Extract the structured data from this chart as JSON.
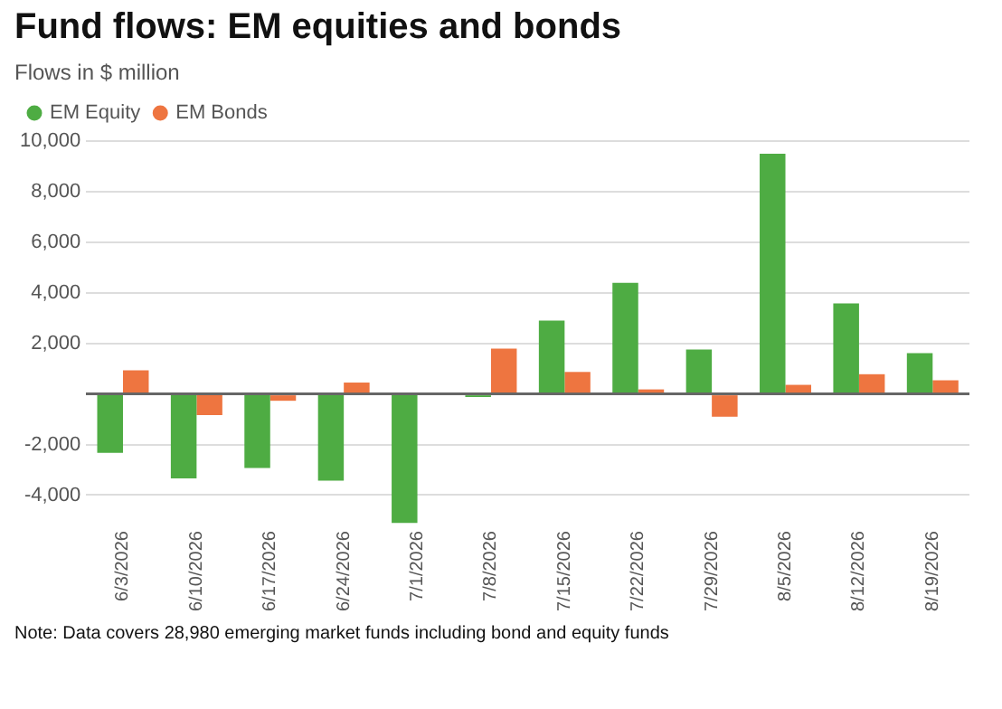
{
  "chart_data": {
    "type": "bar",
    "title": "Fund flows: EM equities and bonds",
    "subtitle": "Flows in $ million",
    "categories": [
      "6/3/2026",
      "6/10/2026",
      "6/17/2026",
      "6/24/2026",
      "7/1/2026",
      "7/8/2026",
      "7/15/2026",
      "7/22/2026",
      "7/29/2026",
      "8/5/2026",
      "8/12/2026",
      "8/19/2026"
    ],
    "series": [
      {
        "name": "EM Equity",
        "color": "#4eac43",
        "values": [
          -2330,
          -3340,
          -2930,
          -3430,
          -5100,
          -120,
          2900,
          4390,
          1760,
          9500,
          3580,
          1610
        ]
      },
      {
        "name": "EM Bonds",
        "color": "#ee7540",
        "values": [
          930,
          -840,
          -270,
          450,
          0,
          1790,
          870,
          180,
          -900,
          360,
          780,
          540
        ]
      }
    ],
    "ylim": [
      -5200,
      10000
    ],
    "yticks": [
      {
        "value": -4000,
        "label": "-4,000"
      },
      {
        "value": -2000,
        "label": "-2,000"
      },
      {
        "value": 0,
        "label": null
      },
      {
        "value": 2000,
        "label": "2,000"
      },
      {
        "value": 4000,
        "label": "4,000"
      },
      {
        "value": 6000,
        "label": "6,000"
      },
      {
        "value": 8000,
        "label": "8,000"
      },
      {
        "value": 10000,
        "label": "10,000"
      }
    ],
    "grid": "y",
    "legend": "top left",
    "annotations": [
      "Note: Data covers 28,980 emerging market funds including bond and equity funds"
    ]
  }
}
